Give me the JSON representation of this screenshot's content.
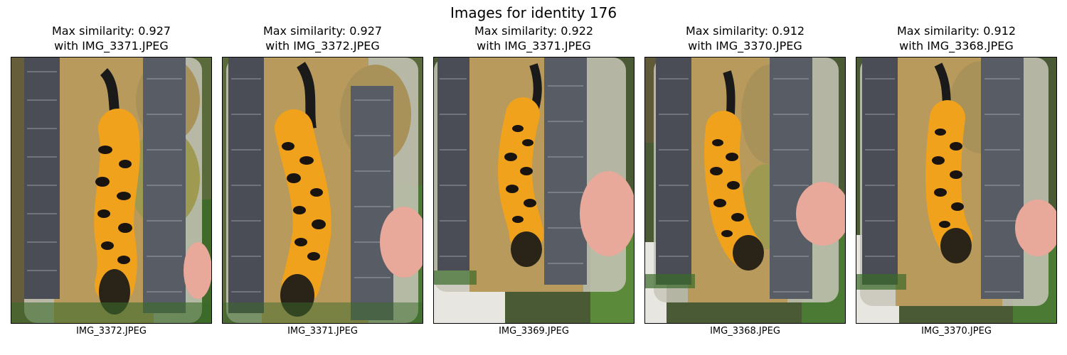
{
  "suptitle": "Images for identity 176",
  "panels": [
    {
      "title_line1": "Max similarity: 0.927",
      "title_line2": "with IMG_3371.JPEG",
      "filename": "IMG_3372.JPEG"
    },
    {
      "title_line1": "Max similarity: 0.927",
      "title_line2": "with IMG_3372.JPEG",
      "filename": "IMG_3371.JPEG"
    },
    {
      "title_line1": "Max similarity: 0.922",
      "title_line2": "with IMG_3371.JPEG",
      "filename": "IMG_3369.JPEG"
    },
    {
      "title_line1": "Max similarity: 0.912",
      "title_line2": "with IMG_3370.JPEG",
      "filename": "IMG_3368.JPEG"
    },
    {
      "title_line1": "Max similarity: 0.912",
      "title_line2": "with IMG_3368.JPEG",
      "filename": "IMG_3370.JPEG"
    }
  ],
  "colors": {
    "newt_belly": "#f0a21c",
    "newt_spots": "#1a1410",
    "sand": "#b89a5c",
    "container_rail": "#4a4d55",
    "foliage": "#3f6a2a",
    "skin": "#e8a89a"
  }
}
